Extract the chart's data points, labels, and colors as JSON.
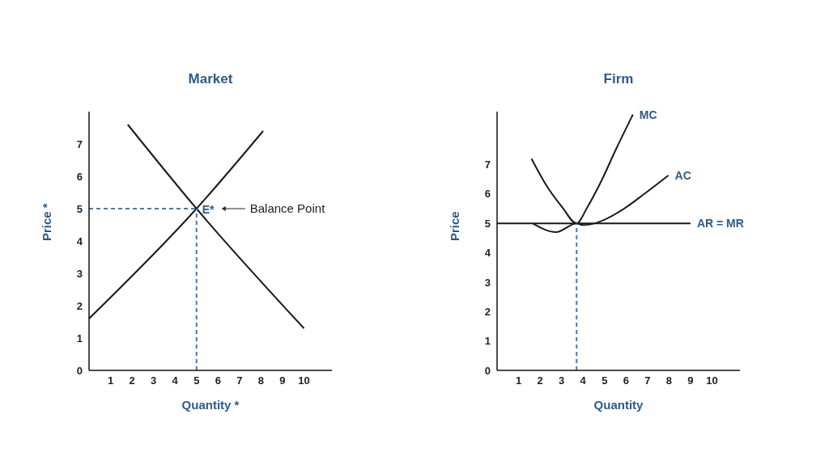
{
  "chart_data": [
    {
      "type": "line",
      "title": "Market",
      "xlabel": "Quantity *",
      "ylabel": "Price *",
      "xlim": [
        0,
        11.3
      ],
      "ylim": [
        0,
        8
      ],
      "xticks": [
        1,
        2,
        3,
        4,
        5,
        6,
        7,
        8,
        9,
        10
      ],
      "yticks": [
        0,
        1,
        2,
        3,
        4,
        5,
        6,
        7
      ],
      "grid": false,
      "legend": false,
      "marker": "none",
      "series": [
        {
          "color": "#1a1a1a",
          "x": [
            0,
            5,
            8.1
          ],
          "values": [
            1.6,
            5,
            7.4
          ]
        },
        {
          "color": "#1a1a1a",
          "x": [
            1.8,
            5,
            10
          ],
          "values": [
            7.6,
            5,
            1.3
          ]
        },
        {
          "color": "#4a7aa5",
          "line_style": "dashed",
          "x": [
            0,
            5
          ],
          "values": [
            5,
            5
          ]
        },
        {
          "color": "#4a7aa5",
          "line_style": "dashed",
          "x": [
            5,
            5
          ],
          "values": [
            0,
            5
          ]
        }
      ],
      "annotations": [
        {
          "text": "E*",
          "x": 5,
          "y": 5
        },
        "Balance Point"
      ]
    },
    {
      "type": "line",
      "title": "Firm",
      "xlabel": "Quantity",
      "ylabel": "Price",
      "xlim": [
        0,
        11.3
      ],
      "ylim": [
        0,
        8.8
      ],
      "xticks": [
        1,
        2,
        3,
        4,
        5,
        6,
        7,
        8,
        9,
        10
      ],
      "yticks": [
        0,
        1,
        2,
        3,
        4,
        5,
        6,
        7
      ],
      "grid": false,
      "legend": false,
      "marker": "none",
      "series": [
        {
          "name": "MC",
          "color": "#1a1a1a",
          "x": [
            1.6,
            2.33,
            3.03,
            3.7,
            4.2,
            4.87,
            5.52,
            6.32
          ],
          "values": [
            7.2,
            6.25,
            5.55,
            5,
            5.55,
            6.47,
            7.5,
            8.7
          ]
        },
        {
          "name": "AC",
          "color": "#1a1a1a",
          "x": [
            1.65,
            2.74,
            3.7,
            4,
            4.67,
            5.74,
            6.9,
            7.97
          ],
          "values": [
            5,
            4.7,
            5,
            4.94,
            5.03,
            5.42,
            6.03,
            6.63
          ]
        },
        {
          "name": "AR = MR",
          "color": "#1a1a1a",
          "x": [
            0,
            9
          ],
          "values": [
            5,
            5
          ]
        },
        {
          "color": "#4a7aa5",
          "line_style": "dashed",
          "x": [
            3.7,
            3.7
          ],
          "values": [
            0,
            5
          ]
        }
      ]
    }
  ]
}
